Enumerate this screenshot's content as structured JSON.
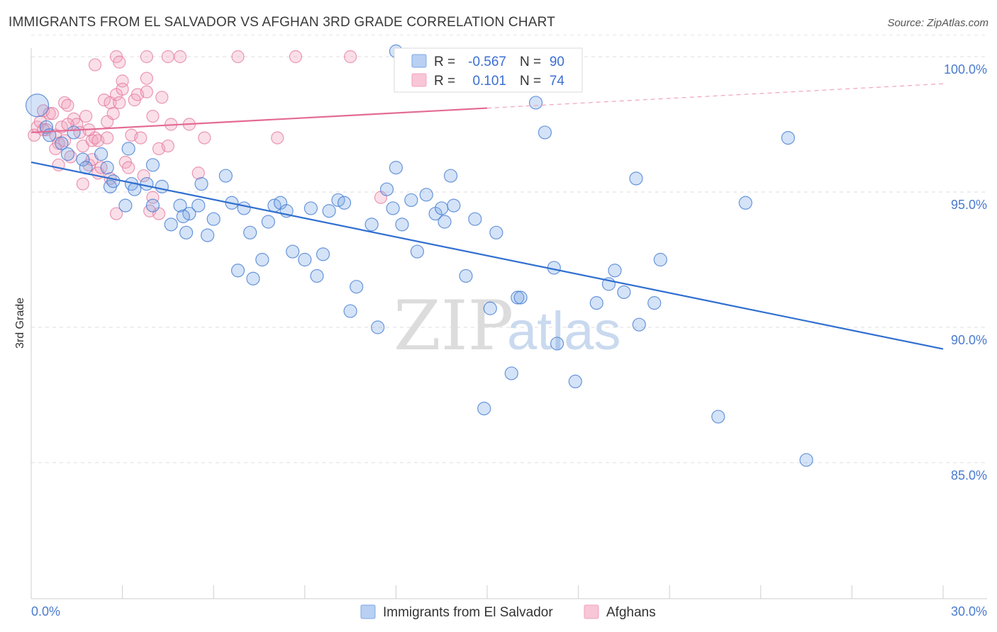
{
  "header": {
    "title": "IMMIGRANTS FROM EL SALVADOR VS AFGHAN 3RD GRADE CORRELATION CHART",
    "source": "Source: ZipAtlas.com"
  },
  "watermark": {
    "part1": "ZIP",
    "part2": "atlas"
  },
  "stats": {
    "r_label": "R =",
    "n_label": "N =",
    "series1": {
      "r": "-0.567",
      "n": "90"
    },
    "series2": {
      "r": "0.101",
      "n": "74"
    }
  },
  "chart_data": {
    "type": "scatter",
    "title": "IMMIGRANTS FROM EL SALVADOR VS AFGHAN 3RD GRADE CORRELATION CHART",
    "xlabel": "",
    "ylabel": "3rd Grade",
    "xlim": [
      0,
      30
    ],
    "ylim": [
      80.0,
      100.8
    ],
    "x_ticks": [
      "0.0%",
      "30.0%"
    ],
    "y_ticks": [
      {
        "value": 100,
        "label": "100.0%"
      },
      {
        "value": 95,
        "label": "95.0%"
      },
      {
        "value": 90,
        "label": "90.0%"
      },
      {
        "value": 85,
        "label": "85.0%"
      }
    ],
    "grid": "horizontal dashed",
    "legend_position": "bottom-center",
    "colors": {
      "blue": "#7aa7e6",
      "blue_line": "#2f6fd0",
      "pink": "#f0a3bd",
      "pink_line": "#e36b95"
    },
    "series": [
      {
        "name": "Immigrants from El Salvador",
        "color": "#7aa7e6",
        "trend": {
          "x": [
            0,
            30
          ],
          "y": [
            96.1,
            89.2
          ],
          "style": "solid"
        },
        "points": [
          [
            0.2,
            98.2
          ],
          [
            0.5,
            97.4
          ],
          [
            0.6,
            97.1
          ],
          [
            1.0,
            96.8
          ],
          [
            1.2,
            96.4
          ],
          [
            1.7,
            96.2
          ],
          [
            1.8,
            95.9
          ],
          [
            2.3,
            96.4
          ],
          [
            2.5,
            95.9
          ],
          [
            2.6,
            95.2
          ],
          [
            2.7,
            95.4
          ],
          [
            3.3,
            95.3
          ],
          [
            3.4,
            95.1
          ],
          [
            3.2,
            96.6
          ],
          [
            3.1,
            94.5
          ],
          [
            3.8,
            95.3
          ],
          [
            4.0,
            96.0
          ],
          [
            4.0,
            94.5
          ],
          [
            4.3,
            95.2
          ],
          [
            4.6,
            93.8
          ],
          [
            4.9,
            94.5
          ],
          [
            5.1,
            93.5
          ],
          [
            5.2,
            94.2
          ],
          [
            5.5,
            94.5
          ],
          [
            5.6,
            95.3
          ],
          [
            5.8,
            93.4
          ],
          [
            6.0,
            94.0
          ],
          [
            6.4,
            95.6
          ],
          [
            6.6,
            94.6
          ],
          [
            6.8,
            92.1
          ],
          [
            7.0,
            94.4
          ],
          [
            7.2,
            93.5
          ],
          [
            7.3,
            91.8
          ],
          [
            7.6,
            92.5
          ],
          [
            7.8,
            93.9
          ],
          [
            8.0,
            94.5
          ],
          [
            8.2,
            94.6
          ],
          [
            8.4,
            94.3
          ],
          [
            8.6,
            92.8
          ],
          [
            9.0,
            92.5
          ],
          [
            9.2,
            94.4
          ],
          [
            9.4,
            91.9
          ],
          [
            9.6,
            92.7
          ],
          [
            9.8,
            94.3
          ],
          [
            10.1,
            94.7
          ],
          [
            10.3,
            94.6
          ],
          [
            10.5,
            90.6
          ],
          [
            10.7,
            91.5
          ],
          [
            11.2,
            93.8
          ],
          [
            11.4,
            90.0
          ],
          [
            11.7,
            95.1
          ],
          [
            11.9,
            94.4
          ],
          [
            12.0,
            95.9
          ],
          [
            12.2,
            93.8
          ],
          [
            12.5,
            94.7
          ],
          [
            12.7,
            92.8
          ],
          [
            13.0,
            94.9
          ],
          [
            13.3,
            94.2
          ],
          [
            13.5,
            94.4
          ],
          [
            13.6,
            93.9
          ],
          [
            13.8,
            95.6
          ],
          [
            13.9,
            94.5
          ],
          [
            14.3,
            91.9
          ],
          [
            14.6,
            94.0
          ],
          [
            14.9,
            87.0
          ],
          [
            15.1,
            90.7
          ],
          [
            15.3,
            93.5
          ],
          [
            15.8,
            88.3
          ],
          [
            16.0,
            91.1
          ],
          [
            16.1,
            91.1
          ],
          [
            16.6,
            98.3
          ],
          [
            16.9,
            97.2
          ],
          [
            17.2,
            92.2
          ],
          [
            17.3,
            89.4
          ],
          [
            17.9,
            88.0
          ],
          [
            18.6,
            90.9
          ],
          [
            19.0,
            91.6
          ],
          [
            19.2,
            92.1
          ],
          [
            19.5,
            91.3
          ],
          [
            19.9,
            95.5
          ],
          [
            20.0,
            90.1
          ],
          [
            20.5,
            90.9
          ],
          [
            20.7,
            92.5
          ],
          [
            22.6,
            86.7
          ],
          [
            23.5,
            94.6
          ],
          [
            24.9,
            97.0
          ],
          [
            25.5,
            85.1
          ],
          [
            12.0,
            100.2
          ],
          [
            5.0,
            94.1
          ],
          [
            1.4,
            97.2
          ]
        ]
      },
      {
        "name": "Afghans",
        "color": "#f0a3bd",
        "trend": {
          "x": [
            0,
            15,
            30
          ],
          "y": [
            97.2,
            98.1,
            99.0
          ],
          "style": "solid-then-dashed"
        },
        "points": [
          [
            0.1,
            97.1
          ],
          [
            0.2,
            97.4
          ],
          [
            0.3,
            97.6
          ],
          [
            0.4,
            98.0
          ],
          [
            0.5,
            97.3
          ],
          [
            0.6,
            97.9
          ],
          [
            0.7,
            97.9
          ],
          [
            0.8,
            97.1
          ],
          [
            0.9,
            96.8
          ],
          [
            0.8,
            96.6
          ],
          [
            0.9,
            96.0
          ],
          [
            1.0,
            97.4
          ],
          [
            1.1,
            96.9
          ],
          [
            1.1,
            98.3
          ],
          [
            1.2,
            98.2
          ],
          [
            1.3,
            96.3
          ],
          [
            1.4,
            97.7
          ],
          [
            1.5,
            97.5
          ],
          [
            1.6,
            97.2
          ],
          [
            1.7,
            96.7
          ],
          [
            1.7,
            95.3
          ],
          [
            1.8,
            97.8
          ],
          [
            1.9,
            96.0
          ],
          [
            2.0,
            96.2
          ],
          [
            2.0,
            96.9
          ],
          [
            2.1,
            97.0
          ],
          [
            2.2,
            95.7
          ],
          [
            2.2,
            96.9
          ],
          [
            2.3,
            95.9
          ],
          [
            2.4,
            98.4
          ],
          [
            2.5,
            97.6
          ],
          [
            2.6,
            95.5
          ],
          [
            2.6,
            98.3
          ],
          [
            2.7,
            97.9
          ],
          [
            2.8,
            98.6
          ],
          [
            2.8,
            94.2
          ],
          [
            2.9,
            98.3
          ],
          [
            3.0,
            99.1
          ],
          [
            3.0,
            98.8
          ],
          [
            3.1,
            96.1
          ],
          [
            3.2,
            95.9
          ],
          [
            3.3,
            97.1
          ],
          [
            3.4,
            98.4
          ],
          [
            3.5,
            98.6
          ],
          [
            3.6,
            97.0
          ],
          [
            3.7,
            95.6
          ],
          [
            3.8,
            99.2
          ],
          [
            3.8,
            98.7
          ],
          [
            3.9,
            94.3
          ],
          [
            4.0,
            94.8
          ],
          [
            4.2,
            96.6
          ],
          [
            4.3,
            98.5
          ],
          [
            4.0,
            97.8
          ],
          [
            4.2,
            94.2
          ],
          [
            4.5,
            96.7
          ],
          [
            4.6,
            97.5
          ],
          [
            5.5,
            95.7
          ],
          [
            5.7,
            97.0
          ],
          [
            6.8,
            100.0
          ],
          [
            8.1,
            97.0
          ],
          [
            8.7,
            100.0
          ],
          [
            10.5,
            100.0
          ],
          [
            11.5,
            94.8
          ],
          [
            3.8,
            100.0
          ],
          [
            4.5,
            100.0
          ],
          [
            2.8,
            100.0
          ],
          [
            2.1,
            99.7
          ],
          [
            1.2,
            97.5
          ],
          [
            0.4,
            97.3
          ],
          [
            5.2,
            97.5
          ],
          [
            1.9,
            97.3
          ],
          [
            2.9,
            99.8
          ],
          [
            4.9,
            100.0
          ],
          [
            2.5,
            97.0
          ]
        ]
      }
    ]
  }
}
